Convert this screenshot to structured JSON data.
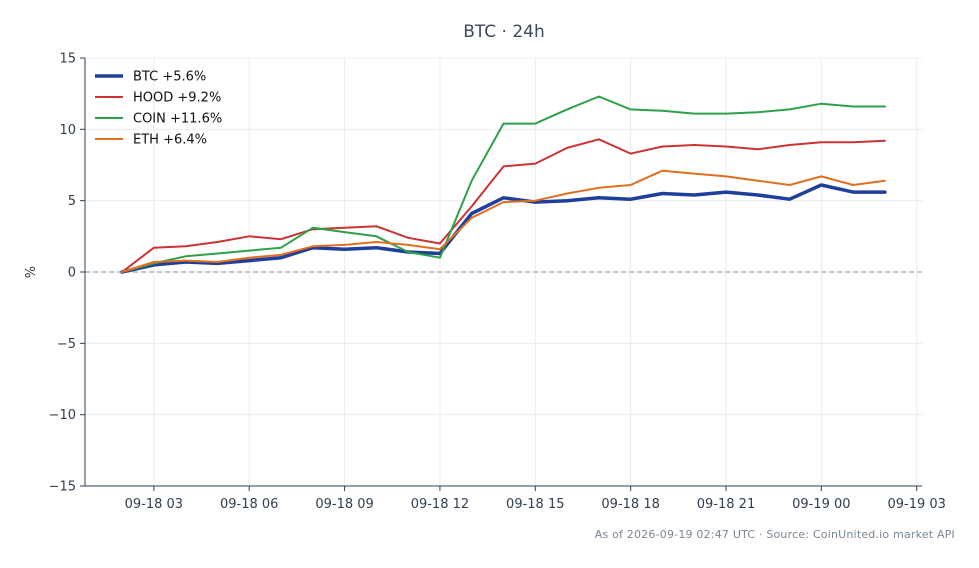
{
  "chart_data": {
    "type": "line",
    "title": "BTC · 24h",
    "xlabel": "",
    "ylabel": "%",
    "ylim": [
      -15,
      15
    ],
    "yticks": [
      15,
      10,
      5,
      0,
      -5,
      -10,
      -15
    ],
    "ytick_labels": [
      "15",
      "10",
      "5",
      "0",
      "−5",
      "−10",
      "−15"
    ],
    "xlim": [
      "2026-09-18 00:50",
      "2026-09-19 03:10"
    ],
    "xticks": [
      "2026-09-18 03:00",
      "2026-09-18 06:00",
      "2026-09-18 09:00",
      "2026-09-18 12:00",
      "2026-09-18 15:00",
      "2026-09-18 18:00",
      "2026-09-18 21:00",
      "2026-09-19 00:00",
      "2026-09-19 03:00"
    ],
    "xtick_labels": [
      "09-18 03",
      "09-18 06",
      "09-18 09",
      "09-18 12",
      "09-18 15",
      "09-18 18",
      "09-18 21",
      "09-19 00",
      "09-19 03"
    ],
    "grid": true,
    "zero_line": true,
    "legend_position": "top-left",
    "x": [
      "2026-09-18 02:00",
      "2026-09-18 03:00",
      "2026-09-18 04:00",
      "2026-09-18 05:00",
      "2026-09-18 06:00",
      "2026-09-18 07:00",
      "2026-09-18 08:00",
      "2026-09-18 09:00",
      "2026-09-18 10:00",
      "2026-09-18 11:00",
      "2026-09-18 12:00",
      "2026-09-18 13:00",
      "2026-09-18 14:00",
      "2026-09-18 15:00",
      "2026-09-18 16:00",
      "2026-09-18 17:00",
      "2026-09-18 18:00",
      "2026-09-18 19:00",
      "2026-09-18 20:00",
      "2026-09-18 21:00",
      "2026-09-18 22:00",
      "2026-09-18 23:00",
      "2026-09-19 00:00",
      "2026-09-19 01:00",
      "2026-09-19 02:00"
    ],
    "series": [
      {
        "name": "BTC +5.6%",
        "color": "#1f3f9c",
        "width": 3.5,
        "values": [
          0.0,
          0.5,
          0.7,
          0.6,
          0.8,
          1.0,
          1.7,
          1.6,
          1.7,
          1.4,
          1.3,
          4.1,
          5.2,
          4.9,
          5.0,
          5.2,
          5.1,
          5.5,
          5.4,
          5.6,
          5.4,
          5.1,
          6.1,
          5.6,
          5.6
        ]
      },
      {
        "name": "HOOD +9.2%",
        "color": "#cc3333",
        "width": 2,
        "values": [
          0.0,
          1.7,
          1.8,
          2.1,
          2.5,
          2.3,
          3.0,
          3.1,
          3.2,
          2.4,
          2.0,
          4.6,
          7.4,
          7.6,
          8.7,
          9.3,
          8.3,
          8.8,
          8.9,
          8.8,
          8.6,
          8.9,
          9.1,
          9.1,
          9.2
        ]
      },
      {
        "name": "COIN +11.6%",
        "color": "#2ca14a",
        "width": 2,
        "values": [
          0.0,
          0.6,
          1.1,
          1.3,
          1.5,
          1.7,
          3.1,
          2.8,
          2.5,
          1.4,
          1.0,
          6.4,
          10.4,
          10.4,
          11.4,
          12.3,
          11.4,
          11.3,
          11.1,
          11.1,
          11.2,
          11.4,
          11.8,
          11.6,
          11.6
        ]
      },
      {
        "name": "ETH +6.4%",
        "color": "#e07020",
        "width": 2,
        "values": [
          0.0,
          0.7,
          0.8,
          0.7,
          1.0,
          1.2,
          1.8,
          1.9,
          2.1,
          1.9,
          1.6,
          3.8,
          4.9,
          5.0,
          5.5,
          5.9,
          6.1,
          7.1,
          6.9,
          6.7,
          6.4,
          6.1,
          6.7,
          6.1,
          6.4
        ]
      }
    ]
  },
  "footer": {
    "note": "As of 2026-09-19 02:47 UTC · Source: CoinUnited.io market API"
  }
}
